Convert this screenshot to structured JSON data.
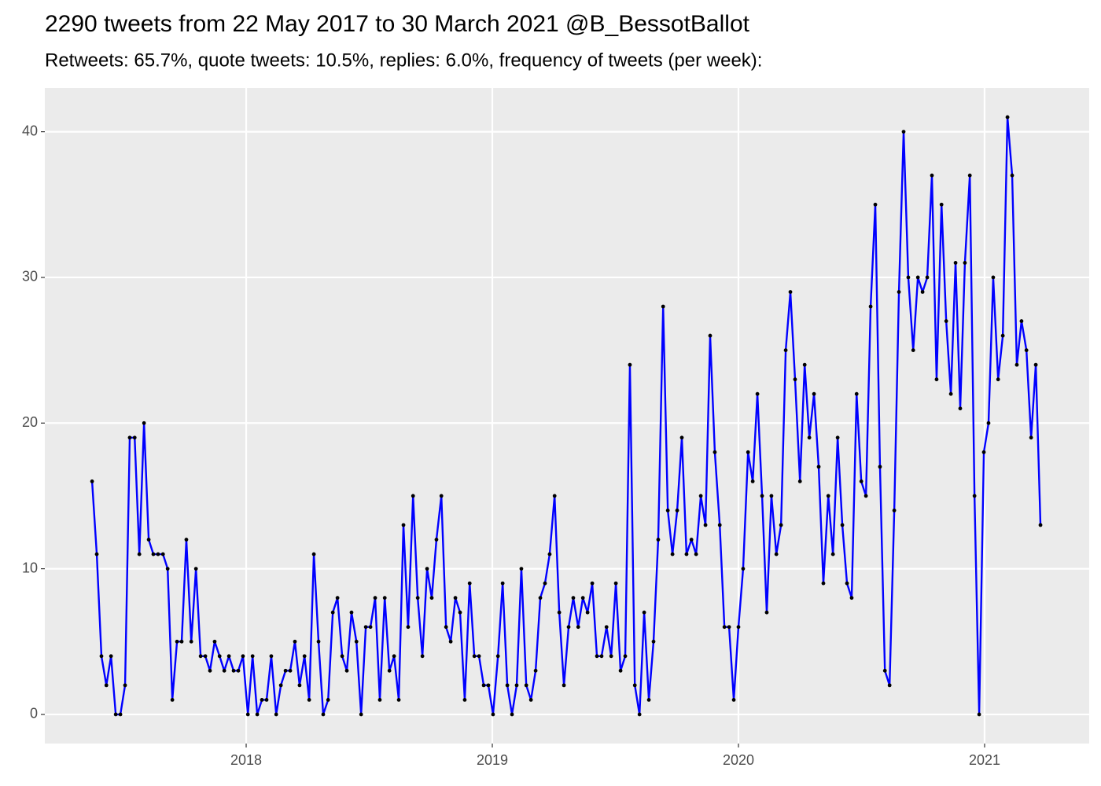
{
  "chart_data": {
    "type": "line",
    "title": "2290 tweets from 22 May 2017 to 30 March 2021 @B_BessotBallot",
    "subtitle": "Retweets: 65.7%, quote tweets: 10.5%, replies: 6.0%, frequency of tweets (per week):",
    "color": "#0000ff",
    "point_color": "#000000",
    "background": "#ebebeb",
    "grid": true,
    "xlim": [
      2017.182,
      2021.425
    ],
    "xticks": [
      2018,
      2019,
      2020,
      2021
    ],
    "ylim": [
      -2,
      43
    ],
    "yticks": [
      0,
      10,
      20,
      30,
      40
    ],
    "x": [
      2017.374,
      2017.393,
      2017.412,
      2017.432,
      2017.451,
      2017.47,
      2017.489,
      2017.508,
      2017.527,
      2017.547,
      2017.566,
      2017.585,
      2017.604,
      2017.623,
      2017.642,
      2017.662,
      2017.681,
      2017.7,
      2017.719,
      2017.738,
      2017.757,
      2017.777,
      2017.796,
      2017.815,
      2017.834,
      2017.853,
      2017.872,
      2017.892,
      2017.911,
      2017.93,
      2017.949,
      2017.968,
      2017.987,
      2018.007,
      2018.026,
      2018.045,
      2018.064,
      2018.083,
      2018.102,
      2018.122,
      2018.141,
      2018.16,
      2018.179,
      2018.198,
      2018.217,
      2018.237,
      2018.256,
      2018.275,
      2018.294,
      2018.313,
      2018.333,
      2018.352,
      2018.371,
      2018.39,
      2018.409,
      2018.428,
      2018.448,
      2018.467,
      2018.486,
      2018.505,
      2018.524,
      2018.543,
      2018.563,
      2018.582,
      2018.601,
      2018.62,
      2018.639,
      2018.658,
      2018.678,
      2018.697,
      2018.716,
      2018.735,
      2018.754,
      2018.773,
      2018.793,
      2018.812,
      2018.831,
      2018.85,
      2018.869,
      2018.888,
      2018.908,
      2018.927,
      2018.946,
      2018.965,
      2018.984,
      2019.003,
      2019.023,
      2019.042,
      2019.061,
      2019.08,
      2019.099,
      2019.118,
      2019.138,
      2019.157,
      2019.176,
      2019.195,
      2019.214,
      2019.233,
      2019.253,
      2019.272,
      2019.291,
      2019.31,
      2019.329,
      2019.349,
      2019.368,
      2019.387,
      2019.406,
      2019.425,
      2019.444,
      2019.464,
      2019.483,
      2019.502,
      2019.521,
      2019.54,
      2019.559,
      2019.579,
      2019.598,
      2019.617,
      2019.636,
      2019.655,
      2019.674,
      2019.694,
      2019.713,
      2019.732,
      2019.751,
      2019.77,
      2019.789,
      2019.809,
      2019.828,
      2019.847,
      2019.866,
      2019.885,
      2019.904,
      2019.924,
      2019.943,
      2019.962,
      2019.981,
      2020.0,
      2020.019,
      2020.039,
      2020.058,
      2020.077,
      2020.096,
      2020.115,
      2020.134,
      2020.154,
      2020.173,
      2020.192,
      2020.211,
      2020.23,
      2020.25,
      2020.269,
      2020.288,
      2020.307,
      2020.326,
      2020.345,
      2020.365,
      2020.384,
      2020.403,
      2020.422,
      2020.441,
      2020.46,
      2020.48,
      2020.499,
      2020.518,
      2020.537,
      2020.556,
      2020.575,
      2020.595,
      2020.614,
      2020.633,
      2020.652,
      2020.671,
      2020.69,
      2020.71,
      2020.729,
      2020.748,
      2020.767,
      2020.786,
      2020.805,
      2020.825,
      2020.844,
      2020.863,
      2020.882,
      2020.901,
      2020.92,
      2020.94,
      2020.959,
      2020.978,
      2020.997,
      2021.016,
      2021.035,
      2021.055,
      2021.074,
      2021.093,
      2021.112,
      2021.131,
      2021.15,
      2021.17,
      2021.189,
      2021.208,
      2021.227
    ],
    "values": [
      16,
      11,
      4,
      2,
      4,
      0,
      0,
      2,
      19,
      19,
      11,
      20,
      12,
      11,
      11,
      11,
      10,
      1,
      5,
      5,
      12,
      5,
      10,
      4,
      4,
      3,
      5,
      4,
      3,
      4,
      3,
      3,
      4,
      0,
      4,
      0,
      1,
      1,
      4,
      0,
      2,
      3,
      3,
      5,
      2,
      4,
      1,
      11,
      5,
      0,
      1,
      7,
      8,
      4,
      3,
      7,
      5,
      0,
      6,
      6,
      8,
      1,
      8,
      3,
      4,
      1,
      13,
      6,
      15,
      8,
      4,
      10,
      8,
      12,
      15,
      6,
      5,
      8,
      7,
      1,
      9,
      4,
      4,
      2,
      2,
      0,
      4,
      9,
      2,
      0,
      2,
      10,
      2,
      1,
      3,
      8,
      9,
      11,
      15,
      7,
      2,
      6,
      8,
      6,
      8,
      7,
      9,
      4,
      4,
      6,
      4,
      9,
      3,
      4,
      24,
      2,
      0,
      7,
      1,
      5,
      12,
      28,
      14,
      11,
      14,
      19,
      11,
      12,
      11,
      15,
      13,
      26,
      18,
      13,
      6,
      6,
      1,
      6,
      10,
      18,
      16,
      22,
      15,
      7,
      15,
      11,
      13,
      25,
      29,
      23,
      16,
      24,
      19,
      22,
      17,
      9,
      15,
      11,
      19,
      13,
      9,
      8,
      22,
      16,
      15,
      28,
      35,
      17,
      3,
      2,
      14,
      29,
      40,
      30,
      25,
      30,
      29,
      30,
      37,
      23,
      35,
      27,
      22,
      31,
      21,
      31,
      37,
      15,
      0,
      18,
      20,
      30,
      23,
      26,
      41,
      37,
      24,
      27,
      25,
      19,
      24,
      13
    ]
  }
}
